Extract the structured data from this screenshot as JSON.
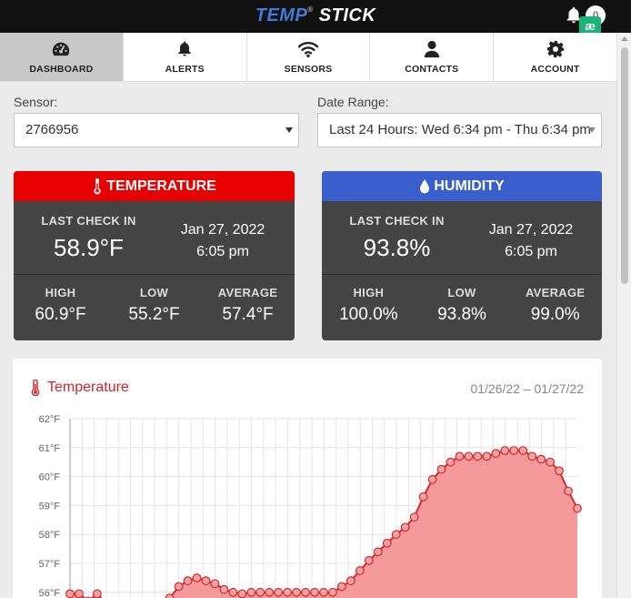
{
  "header": {
    "logo_temp": "TEMP",
    "logo_stick": "STICK",
    "logo_reg": "®",
    "notification_count": "0",
    "extension_badge": "æ"
  },
  "nav": {
    "items": [
      {
        "label": "DASHBOARD",
        "icon": "dashboard-gauge-icon",
        "active": true
      },
      {
        "label": "ALERTS",
        "icon": "bell-icon",
        "active": false
      },
      {
        "label": "SENSORS",
        "icon": "wifi-icon",
        "active": false
      },
      {
        "label": "CONTACTS",
        "icon": "user-icon",
        "active": false
      },
      {
        "label": "ACCOUNT",
        "icon": "gear-icon",
        "active": false
      }
    ]
  },
  "filters": {
    "sensor_label": "Sensor:",
    "sensor_value": "2766956",
    "date_label": "Date Range:",
    "date_value": "Last 24 Hours: Wed 6:34 pm - Thu 6:34 pm"
  },
  "temperature_card": {
    "title": "TEMPERATURE",
    "header_color": "#e60000",
    "last_check_label": "LAST CHECK IN",
    "last_check_value": "58.9°F",
    "date": "Jan 27, 2022",
    "time": "6:05 pm",
    "high_label": "HIGH",
    "high_value": "60.9°F",
    "low_label": "LOW",
    "low_value": "55.2°F",
    "avg_label": "AVERAGE",
    "avg_value": "57.4°F"
  },
  "humidity_card": {
    "title": "HUMIDITY",
    "header_color": "#3a5fcd",
    "last_check_label": "LAST CHECK IN",
    "last_check_value": "93.8%",
    "date": "Jan 27, 2022",
    "time": "6:05 pm",
    "high_label": "HIGH",
    "high_value": "100.0%",
    "low_label": "LOW",
    "low_value": "93.8%",
    "avg_label": "AVERAGE",
    "avg_value": "99.0%"
  },
  "chart_card": {
    "title": "Temperature",
    "date_range": "01/26/22 – 01/27/22"
  },
  "chart_data": {
    "type": "area",
    "title": "Temperature",
    "ylim": [
      56,
      62
    ],
    "y_ticks": [
      "56°F",
      "57°F",
      "58°F",
      "59°F",
      "60°F",
      "61°F",
      "62°F"
    ],
    "grid": true,
    "line_color": "#d9262c",
    "fill_color": "#f59a9a",
    "series": [
      {
        "values": [
          55.95,
          55.95,
          55.7,
          55.95,
          55.6,
          55.5,
          55.4,
          55.4,
          55.5,
          55.6,
          55.6,
          55.8,
          56.2,
          56.4,
          56.5,
          56.4,
          56.3,
          56.1,
          56.0,
          55.95,
          56.0,
          56.0,
          56.0,
          56.0,
          56.0,
          56.0,
          56.0,
          56.0,
          56.0,
          56.0,
          56.2,
          56.4,
          56.75,
          57.1,
          57.4,
          57.7,
          58.0,
          58.25,
          58.6,
          59.3,
          59.9,
          60.25,
          60.5,
          60.7,
          60.7,
          60.7,
          60.7,
          60.8,
          60.9,
          60.9,
          60.9,
          60.7,
          60.6,
          60.5,
          60.2,
          59.5,
          58.9
        ]
      }
    ]
  }
}
